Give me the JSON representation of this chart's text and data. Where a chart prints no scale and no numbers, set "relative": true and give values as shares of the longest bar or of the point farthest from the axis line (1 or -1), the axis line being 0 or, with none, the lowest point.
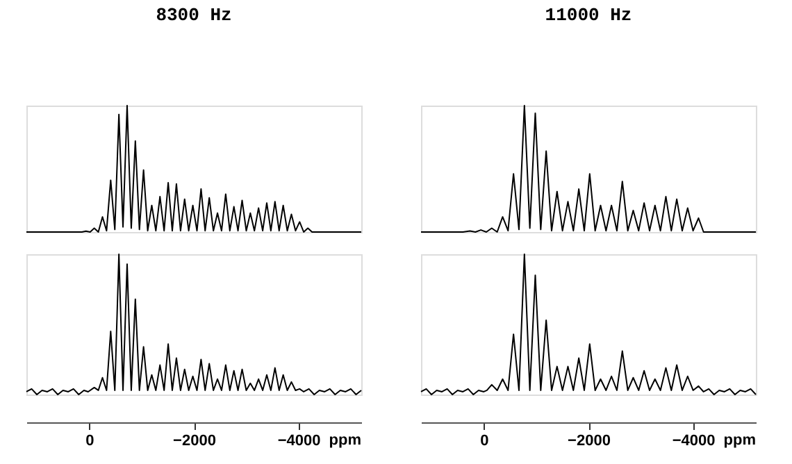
{
  "chart_data": [
    {
      "type": "line",
      "title": "8300 Hz",
      "relative": true,
      "tick_labels": false,
      "xlim": [
        1200,
        -5200
      ],
      "series": [
        {
          "color": "#000000",
          "x": [
            1200,
            200,
            140,
            62,
            -18,
            -97,
            -175,
            -254,
            -332,
            -411,
            -490,
            -568,
            -646,
            -725,
            -804,
            -882,
            -960,
            -1039,
            -1118,
            -1196,
            -1274,
            -1353,
            -1432,
            -1510,
            -1588,
            -1667,
            -1746,
            -1824,
            -1902,
            -1981,
            -2060,
            -2138,
            -2216,
            -2295,
            -2374,
            -2452,
            -2530,
            -2609,
            -2688,
            -2766,
            -2844,
            -2923,
            -3002,
            -3080,
            -3158,
            -3237,
            -3316,
            -3394,
            -3472,
            -3551,
            -3630,
            -3708,
            -3786,
            -3865,
            -3944,
            -4022,
            -4100,
            -4179,
            -4260,
            -5200
          ],
          "values": [
            0,
            0,
            0,
            0.007,
            0,
            0.03,
            0,
            0.12,
            0.01,
            0.41,
            0.02,
            0.93,
            0.04,
            1,
            0.03,
            0.72,
            0.02,
            0.49,
            0.01,
            0.21,
            0.01,
            0.28,
            0.01,
            0.39,
            0.01,
            0.38,
            0.01,
            0.26,
            0.01,
            0.21,
            0.01,
            0.34,
            0.01,
            0.27,
            0.01,
            0.15,
            0.01,
            0.3,
            0.01,
            0.2,
            0.01,
            0.25,
            0.01,
            0.15,
            0.01,
            0.19,
            0.01,
            0.23,
            0.01,
            0.24,
            0.01,
            0.21,
            0.01,
            0.14,
            0.01,
            0.08,
            0,
            0.03,
            0,
            0
          ]
        }
      ]
    },
    {
      "type": "line",
      "relative": true,
      "tick_labels": "x",
      "xlabel": "ppm",
      "xlim": [
        1200,
        -5200
      ],
      "xticks": [
        0,
        -2000,
        -4000
      ],
      "series": [
        {
          "color": "#000000",
          "x": [
            1200,
            1100,
            1000,
            900,
            800,
            700,
            600,
            500,
            400,
            300,
            200,
            100,
            20,
            -97,
            -175,
            -254,
            -332,
            -411,
            -490,
            -568,
            -646,
            -725,
            -804,
            -882,
            -960,
            -1039,
            -1118,
            -1196,
            -1274,
            -1353,
            -1432,
            -1510,
            -1588,
            -1667,
            -1746,
            -1824,
            -1902,
            -1981,
            -2060,
            -2138,
            -2216,
            -2295,
            -2374,
            -2452,
            -2530,
            -2609,
            -2688,
            -2766,
            -2844,
            -2923,
            -3002,
            -3080,
            -3158,
            -3237,
            -3316,
            -3394,
            -3472,
            -3551,
            -3630,
            -3708,
            -3786,
            -3865,
            -3944,
            -4022,
            -4100,
            -4200,
            -4300,
            -4400,
            -4500,
            -4600,
            -4700,
            -4800,
            -4900,
            -5000,
            -5100,
            -5200
          ],
          "values": [
            0.02,
            0.04,
            0,
            0.03,
            0.02,
            0.04,
            0,
            0.03,
            0.02,
            0.04,
            0,
            0.03,
            0.02,
            0.05,
            0.03,
            0.12,
            0.03,
            0.45,
            0.03,
            1,
            0.03,
            0.93,
            0.03,
            0.68,
            0.03,
            0.34,
            0.03,
            0.14,
            0.03,
            0.21,
            0.03,
            0.36,
            0.03,
            0.26,
            0.03,
            0.18,
            0.03,
            0.13,
            0.03,
            0.25,
            0.03,
            0.22,
            0.03,
            0.11,
            0.03,
            0.21,
            0.03,
            0.17,
            0.03,
            0.18,
            0.03,
            0.08,
            0.03,
            0.11,
            0.03,
            0.14,
            0.03,
            0.19,
            0.03,
            0.14,
            0.03,
            0.09,
            0.03,
            0.04,
            0.02,
            0.04,
            0,
            0.03,
            0.02,
            0.04,
            0,
            0.03,
            0.02,
            0.04,
            0,
            0.03
          ]
        }
      ]
    },
    {
      "type": "line",
      "title": "11000 Hz",
      "relative": true,
      "tick_labels": false,
      "xlim": [
        1200,
        -5200
      ],
      "series": [
        {
          "color": "#000000",
          "x": [
            1200,
            400,
            264,
            160,
            56,
            -48,
            -152,
            -256,
            -360,
            -464,
            -568,
            -672,
            -776,
            -880,
            -984,
            -1088,
            -1192,
            -1296,
            -1400,
            -1504,
            -1608,
            -1712,
            -1816,
            -1920,
            -2024,
            -2128,
            -2232,
            -2336,
            -2440,
            -2544,
            -2648,
            -2752,
            -2856,
            -2960,
            -3064,
            -3168,
            -3272,
            -3376,
            -3480,
            -3584,
            -3688,
            -3792,
            -3896,
            -4000,
            -4104,
            -4200,
            -5200
          ],
          "values": [
            0,
            0,
            0.008,
            0,
            0.016,
            0,
            0.03,
            0,
            0.12,
            0.01,
            0.46,
            0.02,
            1,
            0.03,
            0.94,
            0.02,
            0.64,
            0.01,
            0.32,
            0.01,
            0.24,
            0.01,
            0.34,
            0.01,
            0.46,
            0.01,
            0.21,
            0.01,
            0.21,
            0.01,
            0.4,
            0.01,
            0.17,
            0.01,
            0.23,
            0.01,
            0.21,
            0.01,
            0.28,
            0.01,
            0.26,
            0.01,
            0.19,
            0.01,
            0.11,
            0,
            0
          ]
        }
      ]
    },
    {
      "type": "line",
      "relative": true,
      "tick_labels": "x",
      "xlabel": "ppm",
      "xlim": [
        1200,
        -5200
      ],
      "xticks": [
        0,
        -2000,
        -4000
      ],
      "series": [
        {
          "color": "#000000",
          "x": [
            1200,
            1100,
            1000,
            900,
            800,
            700,
            600,
            500,
            400,
            300,
            200,
            100,
            0,
            -60,
            -152,
            -256,
            -360,
            -464,
            -568,
            -672,
            -776,
            -880,
            -984,
            -1088,
            -1192,
            -1296,
            -1400,
            -1504,
            -1608,
            -1712,
            -1816,
            -1920,
            -2024,
            -2128,
            -2232,
            -2336,
            -2440,
            -2544,
            -2648,
            -2752,
            -2856,
            -2960,
            -3064,
            -3168,
            -3272,
            -3376,
            -3480,
            -3584,
            -3688,
            -3792,
            -3896,
            -4000,
            -4104,
            -4200,
            -4300,
            -4400,
            -4500,
            -4600,
            -4700,
            -4800,
            -4900,
            -5000,
            -5100,
            -5200
          ],
          "values": [
            0.02,
            0.04,
            0,
            0.03,
            0.02,
            0.04,
            0,
            0.03,
            0.02,
            0.04,
            0,
            0.03,
            0.02,
            0.03,
            0.07,
            0.03,
            0.11,
            0.03,
            0.43,
            0.03,
            1,
            0.03,
            0.85,
            0.03,
            0.53,
            0.03,
            0.2,
            0.03,
            0.2,
            0.03,
            0.26,
            0.03,
            0.36,
            0.03,
            0.11,
            0.03,
            0.13,
            0.03,
            0.31,
            0.03,
            0.12,
            0.03,
            0.17,
            0.03,
            0.11,
            0.03,
            0.19,
            0.03,
            0.21,
            0.03,
            0.13,
            0.03,
            0.06,
            0.02,
            0.04,
            0,
            0.03,
            0.02,
            0.04,
            0,
            0.03,
            0.02,
            0.04,
            0
          ]
        }
      ]
    }
  ]
}
